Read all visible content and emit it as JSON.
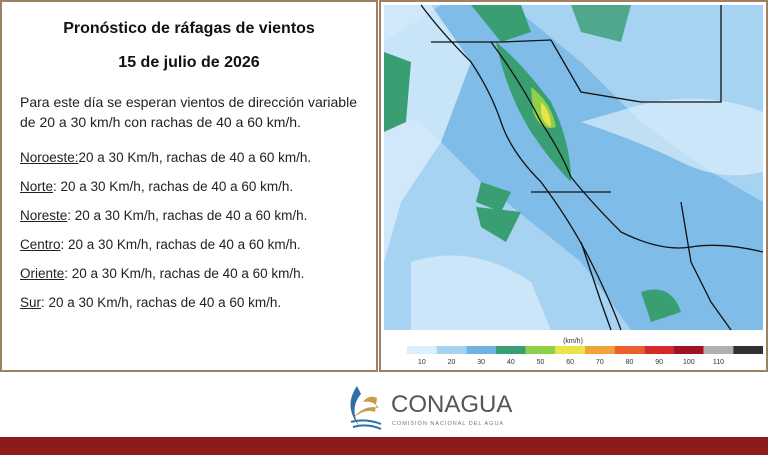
{
  "title": "Pronóstico de ráfagas de vientos",
  "date": "15 de julio de 2026",
  "summary": [
    "Para este día se esperan vientos de dirección variable",
    "de 20 a 30 km/h con rachas de 40 a 60 km/h."
  ],
  "regions": [
    {
      "name": "Noroeste:",
      "text": "20 a 30 Km/h, rachas de 40 a 60 km/h."
    },
    {
      "name": "Norte",
      "text": ": 20 a 30 Km/h, rachas de 40 a 60 km/h."
    },
    {
      "name": "Noreste",
      "text": ": 20 a 30 Km/h, rachas de 40 a 60 km/h."
    },
    {
      "name": "Centro",
      "text": ":  20 a 30 Km/h, rachas de 40 a 60 km/h."
    },
    {
      "name": "Oriente",
      "text": ":  20 a 30 Km/h, rachas de 40 a 60 km/h."
    },
    {
      "name": "Sur",
      "text": ":  20 a 30 Km/h, rachas de 40 a 60 km/h."
    }
  ],
  "map": {
    "legend": {
      "unit": "(km/h)",
      "ticks": [
        10,
        20,
        30,
        40,
        50,
        60,
        70,
        80,
        90,
        100,
        110
      ],
      "colors": [
        "#dbeefb",
        "#a6d3f2",
        "#6fb3e4",
        "#3a9e73",
        "#8fcf4a",
        "#e8e44a",
        "#f2a23a",
        "#e8602e",
        "#d42a2a",
        "#9e1420",
        "#b0b0b0",
        "#303030"
      ]
    }
  },
  "logo": {
    "name": "CONAGUA",
    "subtitle": "COMISIÓN NACIONAL DEL AGUA"
  }
}
